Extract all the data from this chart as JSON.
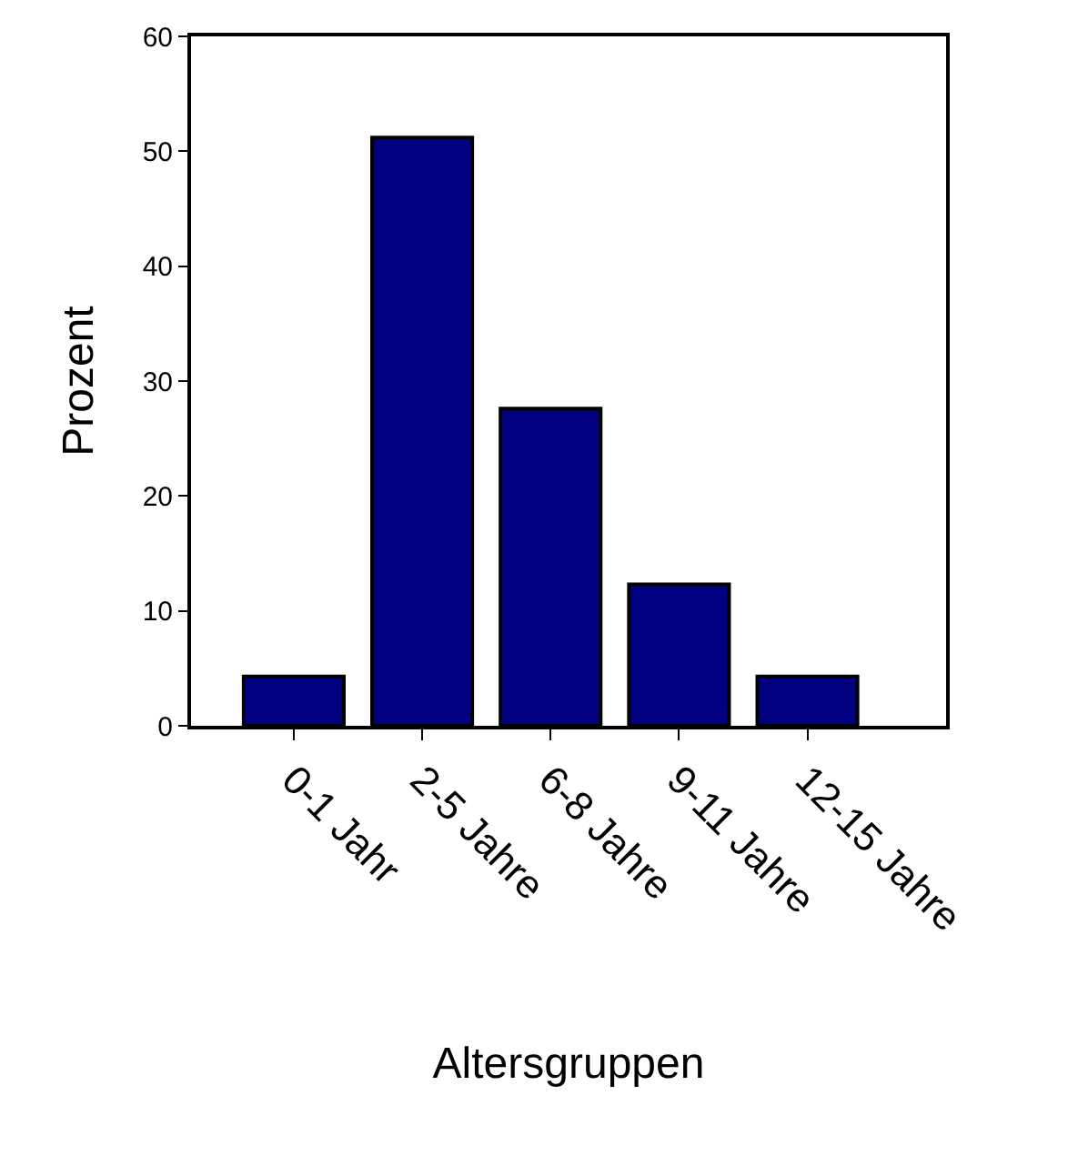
{
  "chart_data": {
    "type": "bar",
    "xlabel": "Altersgruppen",
    "ylabel": "Prozent",
    "categories": [
      "0-1 Jahr",
      "2-5 Jahre",
      "6-8 Jahre",
      "9-11 Jahre",
      "12-15 Jahre"
    ],
    "values": [
      4.3,
      51.2,
      27.6,
      12.3,
      4.3
    ],
    "color": "#000080",
    "ylim": [
      0,
      60
    ],
    "yticks": [
      0,
      10,
      20,
      30,
      40,
      50,
      60
    ]
  }
}
